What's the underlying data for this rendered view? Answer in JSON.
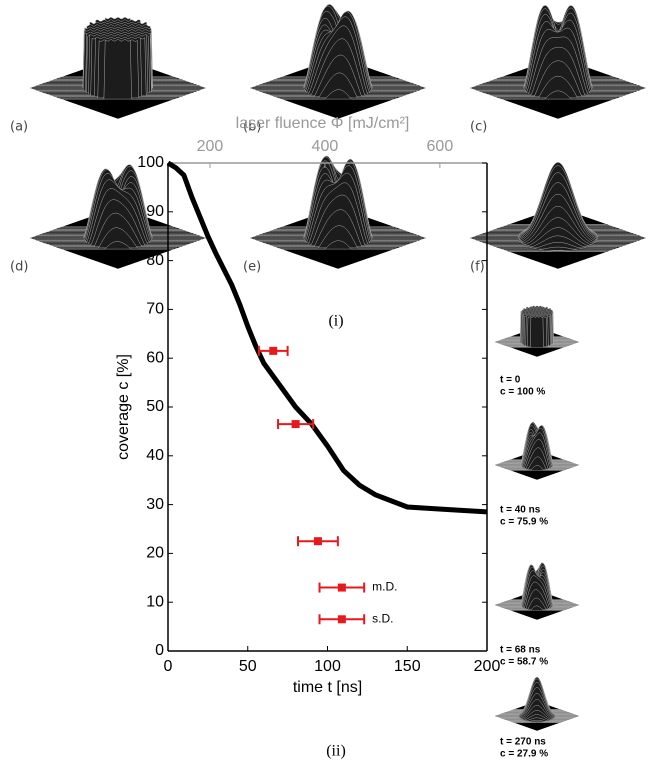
{
  "panels": {
    "labels": [
      "(a)",
      "(b)",
      "(c)",
      "(d)",
      "(e)",
      "(f)"
    ],
    "caption": "(i)"
  },
  "chart_data": {
    "type": "line",
    "xlabel": "time t [ns]",
    "ylabel": "coverage c [%]",
    "x2label": "laser fluence Φ [mJ/cm²]",
    "xlim": [
      0,
      200
    ],
    "xticks": [
      0,
      50,
      100,
      150,
      200
    ],
    "ylim": [
      0,
      100
    ],
    "yticks": [
      0,
      10,
      20,
      30,
      40,
      50,
      60,
      70,
      80,
      90,
      100
    ],
    "x2lim": [
      127,
      682
    ],
    "x2ticks": [
      200,
      400,
      600
    ],
    "series": [
      {
        "color": "#000000",
        "x": [
          0,
          5,
          10,
          15,
          20,
          25,
          30,
          40,
          45,
          50,
          55,
          60,
          70,
          80,
          90,
          100,
          110,
          120,
          130,
          150,
          175,
          200
        ],
        "values": [
          100,
          99,
          97.5,
          93,
          89,
          85,
          81.5,
          75,
          71,
          66.5,
          62.5,
          59,
          54.5,
          50,
          46.5,
          42,
          37,
          34,
          32,
          29.5,
          29,
          28.5
        ]
      },
      {
        "type": "errorbar",
        "color": "#e8191c",
        "x": [
          66,
          80,
          94,
          109,
          109
        ],
        "values": [
          61.5,
          46.5,
          22.5,
          13,
          6.5
        ],
        "xerr": [
          9,
          11,
          12.5,
          14,
          14
        ],
        "labels": [
          null,
          null,
          null,
          "m.D.",
          "s.D."
        ]
      }
    ]
  },
  "insets": [
    {
      "t": "t = 0",
      "c": "c = 100 %"
    },
    {
      "t": "t = 40 ns",
      "c": "c = 75.9 %"
    },
    {
      "t": "t = 68 ns",
      "c": "c = 58.7 %"
    },
    {
      "t": "t = 270 ns",
      "c": "c = 27.9 %"
    }
  ],
  "caption": "(ii)"
}
